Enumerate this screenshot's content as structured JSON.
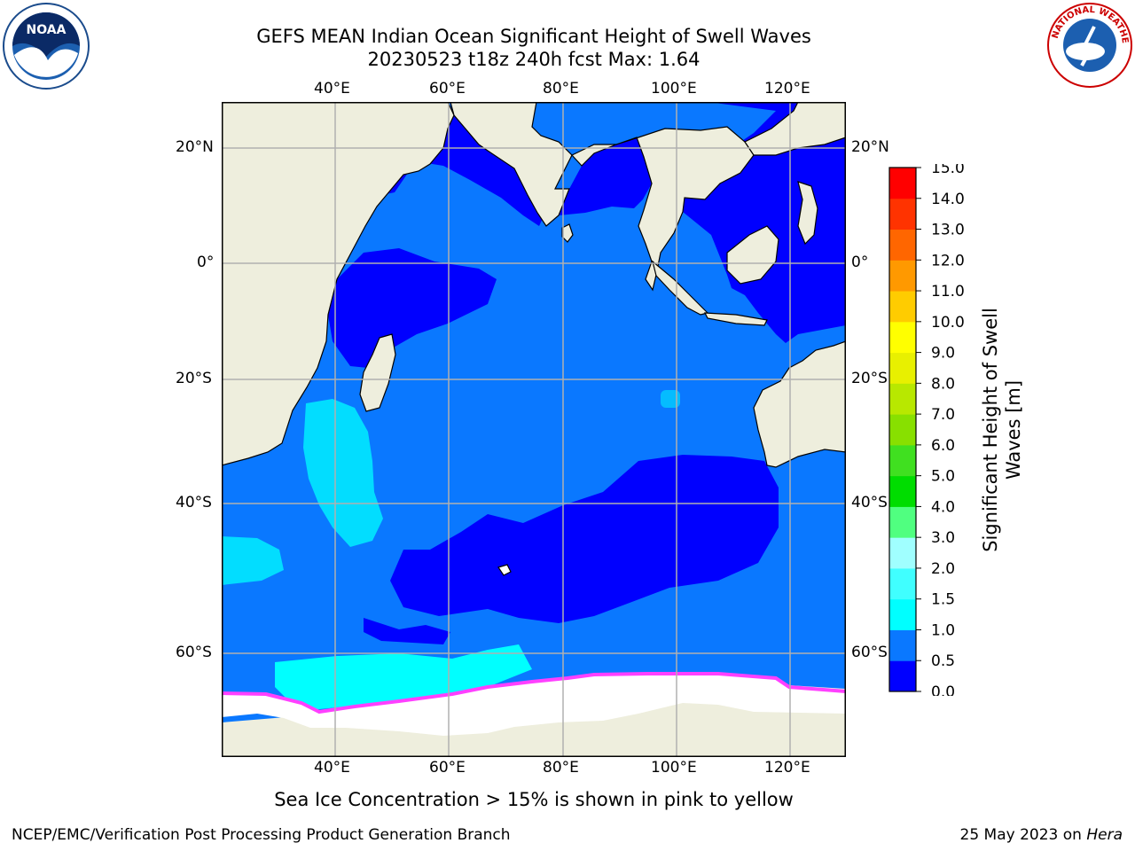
{
  "title_line1": "GEFS MEAN Indian Ocean Significant Height of Swell Waves",
  "title_line2": "20230523 t18z 240h fcst   Max: 1.64",
  "lon_ticks": [
    "40°E",
    "60°E",
    "80°E",
    "100°E",
    "120°E"
  ],
  "lat_ticks": [
    "20°N",
    "0°",
    "20°S",
    "40°S",
    "60°S"
  ],
  "colorbar": {
    "label_line1": "Significant Height of Swell",
    "label_line2": "Waves [m]",
    "ticks": [
      "0.0",
      "0.5",
      "1.0",
      "1.5",
      "2.0",
      "3.0",
      "4.0",
      "5.0",
      "6.0",
      "7.0",
      "8.0",
      "9.0",
      "10.0",
      "11.0",
      "12.0",
      "13.0",
      "14.0",
      "15.0"
    ],
    "colors": [
      "#0000ff",
      "#0a78ff",
      "#00ffff",
      "#40ffff",
      "#a0ffff",
      "#50ff80",
      "#00dd00",
      "#40e020",
      "#88e000",
      "#b8e800",
      "#e8f000",
      "#ffff00",
      "#ffcc00",
      "#ff9900",
      "#ff6600",
      "#ff3300",
      "#ff0000"
    ]
  },
  "colors": {
    "land": "#eeeedd",
    "ocean_mid": "#0a78ff",
    "ocean_low": "#0000ff",
    "swell_high": "#00ffff",
    "sea_ice": "#ffffff",
    "ice_edge": "#ff40ff"
  },
  "note": "Sea Ice Concentration > 15% is shown in pink to yellow",
  "footer_left": "NCEP/EMC/Verification Post Processing Product Generation Branch",
  "footer_date": "25 May 2023 on ",
  "footer_host": "Hera",
  "logos": {
    "left": "NOAA",
    "right": "NATIONAL WEATHER SERVICE"
  }
}
